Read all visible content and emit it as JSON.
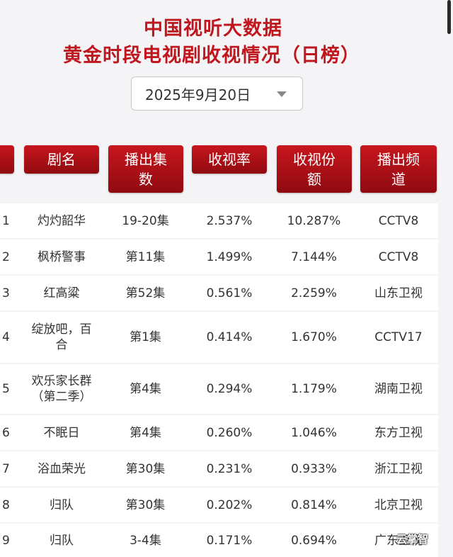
{
  "title": {
    "line1": "中国视听大数据",
    "line2": "黄金时段电视剧收视情况（日榜）"
  },
  "date_select": {
    "value": "2025年9月20日"
  },
  "headers": {
    "name": "剧名",
    "episodes_l1": "播出集",
    "episodes_l2": "数",
    "rating": "收视率",
    "share_l1": "收视份",
    "share_l2": "额",
    "channel_l1": "播出频",
    "channel_l2": "道"
  },
  "rows": [
    {
      "rank": "1",
      "name_l1": "灼灼韶华",
      "name_l2": "",
      "episodes": "19-20集",
      "rating": "2.537%",
      "share": "10.287%",
      "channel": "CCTV8"
    },
    {
      "rank": "2",
      "name_l1": "枫桥警事",
      "name_l2": "",
      "episodes": "第11集",
      "rating": "1.499%",
      "share": "7.144%",
      "channel": "CCTV8"
    },
    {
      "rank": "3",
      "name_l1": "红高粱",
      "name_l2": "",
      "episodes": "第52集",
      "rating": "0.561%",
      "share": "2.259%",
      "channel": "山东卫视"
    },
    {
      "rank": "4",
      "name_l1": "绽放吧，百",
      "name_l2": "合",
      "episodes": "第1集",
      "rating": "0.414%",
      "share": "1.670%",
      "channel": "CCTV17"
    },
    {
      "rank": "5",
      "name_l1": "欢乐家长群",
      "name_l2": "（第二季）",
      "episodes": "第4集",
      "rating": "0.294%",
      "share": "1.179%",
      "channel": "湖南卫视"
    },
    {
      "rank": "6",
      "name_l1": "不眠日",
      "name_l2": "",
      "episodes": "第4集",
      "rating": "0.260%",
      "share": "1.046%",
      "channel": "东方卫视"
    },
    {
      "rank": "7",
      "name_l1": "浴血荣光",
      "name_l2": "",
      "episodes": "第30集",
      "rating": "0.231%",
      "share": "0.933%",
      "channel": "浙江卫视"
    },
    {
      "rank": "8",
      "name_l1": "归队",
      "name_l2": "",
      "episodes": "第30集",
      "rating": "0.202%",
      "share": "0.814%",
      "channel": "北京卫视"
    },
    {
      "rank": "9",
      "name_l1": "归队",
      "name_l2": "",
      "episodes": "3-4集",
      "rating": "0.171%",
      "share": "0.694%",
      "channel": "广东卫视"
    }
  ],
  "watermark": "云掌智",
  "colors": {
    "accent": "#c0161e",
    "header_bg": "#a30f16"
  }
}
